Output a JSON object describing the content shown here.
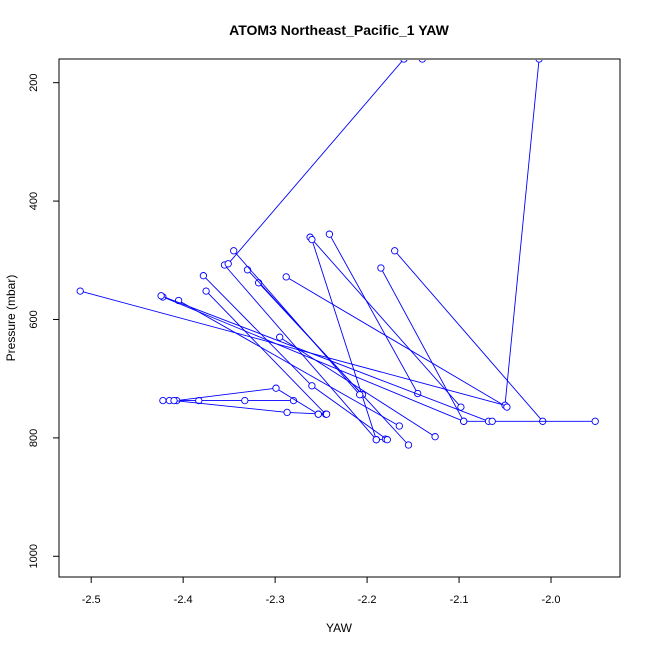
{
  "chart_data": {
    "type": "line",
    "title": "ATOM3 Northeast_Pacific_1 YAW",
    "xlabel": "YAW",
    "ylabel": "Pressure (mbar)",
    "xlim": [
      -2.535,
      -1.925
    ],
    "ylim": [
      1035,
      160
    ],
    "y_reversed": true,
    "x_ticks": [
      -2.5,
      -2.4,
      -2.3,
      -2.2,
      -2.1,
      -2.0
    ],
    "x_tick_labels": [
      "-2.5",
      "-2.4",
      "-2.3",
      "-2.2",
      "-2.1",
      "-2.0"
    ],
    "y_ticks": [
      200,
      400,
      600,
      800,
      1000
    ],
    "y_tick_labels": [
      "200",
      "400",
      "600",
      "800",
      "1000"
    ],
    "grid": false,
    "legend": "none",
    "marker": "open-circle",
    "color": "#0000ff",
    "series": [
      {
        "x": [
          -2.013,
          -2.05,
          -2.512
        ],
        "y": [
          160,
          745,
          552
        ]
      },
      {
        "x": [
          -2.17,
          -2.009
        ],
        "y": [
          484,
          772
        ]
      },
      {
        "x": [
          -2.185,
          -2.095
        ],
        "y": [
          513,
          772
        ]
      },
      {
        "x": [
          -2.241,
          -2.145
        ],
        "y": [
          456,
          725
        ]
      },
      {
        "x": [
          -2.262,
          -2.098
        ],
        "y": [
          461,
          748
        ]
      },
      {
        "x": [
          -2.26,
          -2.19,
          -2.18
        ],
        "y": [
          465,
          803,
          802
        ]
      },
      {
        "x": [
          -2.288,
          -2.048
        ],
        "y": [
          528,
          748
        ]
      },
      {
        "x": [
          -2.295,
          -2.126
        ],
        "y": [
          630,
          798
        ]
      },
      {
        "x": [
          -2.318,
          -2.205
        ],
        "y": [
          538,
          727
        ]
      },
      {
        "x": [
          -2.33,
          -2.155
        ],
        "y": [
          516,
          812
        ]
      },
      {
        "x": [
          -2.345,
          -2.208
        ],
        "y": [
          484,
          727
        ]
      },
      {
        "x": [
          -2.355,
          -2.19
        ],
        "y": [
          508,
          803
        ]
      },
      {
        "x": [
          -2.351,
          -2.16,
          -2.14
        ],
        "y": [
          506,
          160,
          160
        ]
      },
      {
        "x": [
          -2.405,
          -2.165
        ],
        "y": [
          568,
          780
        ]
      },
      {
        "x": [
          -2.422,
          -2.095,
          -1.952
        ],
        "y": [
          562,
          772,
          772
        ]
      },
      {
        "x": [
          -2.424,
          -2.068,
          -2.064
        ],
        "y": [
          560,
          772,
          772
        ]
      },
      {
        "x": [
          -2.375,
          -2.245
        ],
        "y": [
          552,
          760
        ]
      },
      {
        "x": [
          -2.378,
          -2.26,
          -2.178
        ],
        "y": [
          526,
          712,
          803
        ]
      },
      {
        "x": [
          -2.422,
          -2.383,
          -2.333,
          -2.28
        ],
        "y": [
          737,
          737,
          737,
          737
        ]
      },
      {
        "x": [
          -2.415,
          -2.407,
          -2.299,
          -2.253
        ],
        "y": [
          737,
          737,
          716,
          760
        ]
      },
      {
        "x": [
          -2.41,
          -2.287,
          -2.244,
          -2.253
        ],
        "y": [
          737,
          757,
          760,
          760
        ]
      }
    ]
  }
}
